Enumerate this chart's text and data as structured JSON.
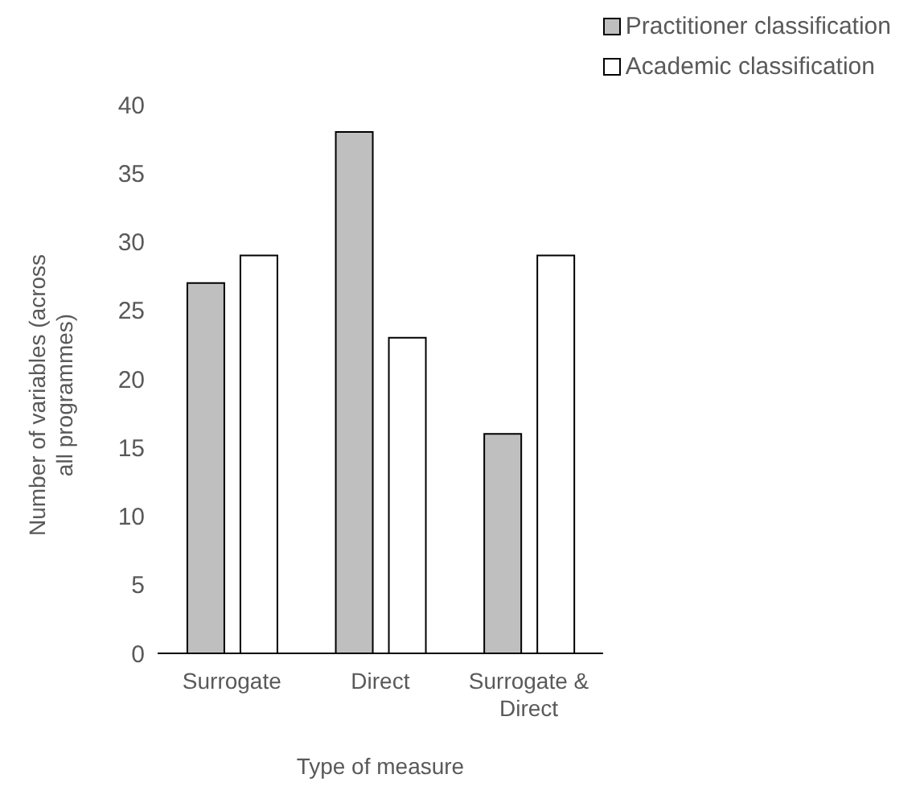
{
  "chart_data": {
    "type": "bar",
    "xlabel": "Type of measure",
    "ylabel": "Number of variables (across all programmes)",
    "categories": [
      "Surrogate",
      "Direct",
      "Surrogate & Direct"
    ],
    "series": [
      {
        "name": "Practitioner classification",
        "color": "#bfbfbf",
        "values": [
          27,
          38,
          16
        ]
      },
      {
        "name": "Academic classification",
        "color": "#ffffff",
        "values": [
          29,
          23,
          29
        ]
      }
    ],
    "ylim": [
      0,
      40
    ],
    "yticks": [
      0,
      5,
      10,
      15,
      20,
      25,
      30,
      35,
      40
    ],
    "grid": false,
    "legend": "top right"
  }
}
